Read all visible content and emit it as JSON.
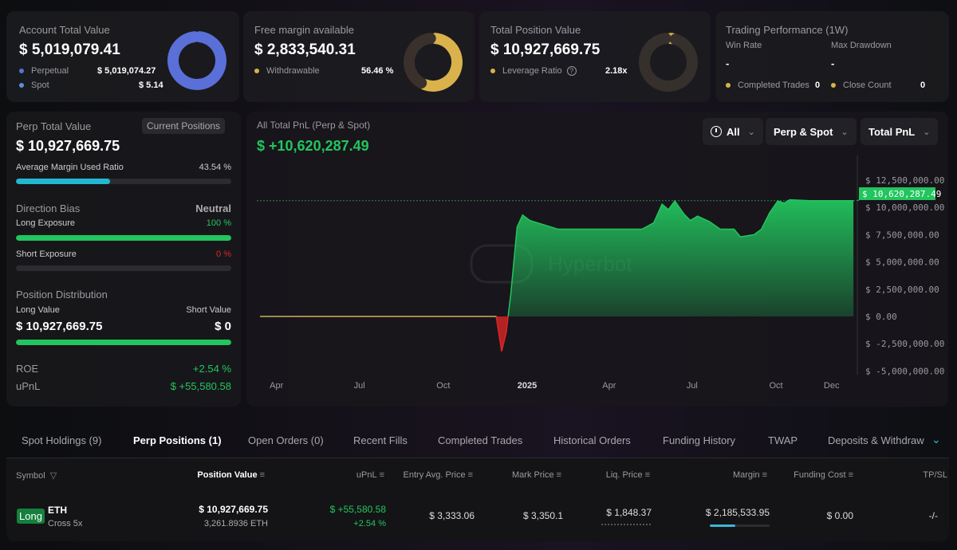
{
  "summary": {
    "account": {
      "title": "Account Total Value",
      "value": "$ 5,019,079.41",
      "items": [
        {
          "label": "Perpetual",
          "value": "$ 5,019,074.27",
          "color": "#5a6fd8"
        },
        {
          "label": "Spot",
          "value": "$ 5.14",
          "color": "#5b8fd8"
        }
      ],
      "donut_fraction": 0.999
    },
    "free_margin": {
      "title": "Free margin available",
      "value": "$ 2,833,540.31",
      "item": {
        "label": "Withdrawable",
        "value": "56.46 %",
        "color": "#d9b24c"
      },
      "donut_fraction": 0.5646
    },
    "position": {
      "title": "Total Position Value",
      "value": "$ 10,927,669.75",
      "item": {
        "label": "Leverage Ratio",
        "value": "2.18x",
        "color": "#d9b24c"
      },
      "help_icon": "question-circle-icon",
      "donut_fraction": 0.03
    },
    "performance": {
      "title": "Trading Performance (1W)",
      "win_rate_label": "Win Rate",
      "win_rate": "-",
      "max_drawdown_label": "Max Drawdown",
      "max_drawdown": "-",
      "completed_label": "Completed Trades",
      "completed": "0",
      "close_label": "Close Count",
      "close": "0"
    }
  },
  "perp": {
    "title": "Perp Total Value",
    "button": "Current Positions",
    "value": "$ 10,927,669.75",
    "margin_label": "Average Margin Used Ratio",
    "margin_value": "43.54 %",
    "margin_fraction": 0.4354,
    "bias_label": "Direction Bias",
    "bias_value": "Neutral",
    "long_label": "Long Exposure",
    "long_value": "100 %",
    "long_fraction": 1,
    "short_label": "Short Exposure",
    "short_value": "0 %",
    "short_fraction": 0,
    "dist_label": "Position Distribution",
    "long_value_label": "Long Value",
    "long_amount": "$ 10,927,669.75",
    "short_value_label": "Short Value",
    "short_amount": "$ 0",
    "roe_label": "ROE",
    "roe": "+2.54 %",
    "upnl_label": "uPnL",
    "upnl": "$ +55,580.58"
  },
  "pnl": {
    "title": "All Total PnL (Perp & Spot)",
    "value": "$ +10,620,287.49",
    "filters": [
      {
        "label": "All",
        "icon": "clock-icon"
      },
      {
        "label": "Perp & Spot"
      },
      {
        "label": "Total PnL"
      }
    ],
    "watermark": "Hyperbot"
  },
  "chart_data": {
    "type": "area",
    "current_label": "$ 10,620,287.49",
    "ylim": [
      -5000000,
      12500000
    ],
    "y_ticks": [
      12500000,
      10000000,
      7500000,
      5000000,
      2500000,
      0,
      -2500000,
      -5000000
    ],
    "y_tick_labels": [
      "$ 12,500,000.00",
      "$ 10,000,000.00",
      "$ 7,500,000.00",
      "$ 5,000,000.00",
      "$ 2,500,000.00",
      "$ 0.00",
      "$ -2,500,000.00",
      "$ -5,000,000.00"
    ],
    "x_ticks": [
      {
        "date": "2024-04-01",
        "label": "Apr"
      },
      {
        "date": "2024-07-01",
        "label": "Jul"
      },
      {
        "date": "2024-10-01",
        "label": "Oct"
      },
      {
        "date": "2025-01-01",
        "label": "2025"
      },
      {
        "date": "2025-04-01",
        "label": "Apr"
      },
      {
        "date": "2025-07-01",
        "label": "Jul"
      },
      {
        "date": "2025-10-01",
        "label": "Oct"
      },
      {
        "date": "2025-12-01",
        "label": "Dec"
      }
    ],
    "xlim": [
      "2024-03-14",
      "2025-12-25"
    ],
    "colors": {
      "positive": "#22c55e",
      "negative": "#dc2626",
      "neutral": "#b8a25a"
    },
    "points": [
      [
        "2024-03-14",
        0
      ],
      [
        "2024-11-28",
        0
      ],
      [
        "2024-12-04",
        -3200000
      ],
      [
        "2024-12-09",
        -1500000
      ],
      [
        "2024-12-14",
        2000000
      ],
      [
        "2024-12-21",
        8200000
      ],
      [
        "2024-12-27",
        9300000
      ],
      [
        "2025-01-04",
        8800000
      ],
      [
        "2025-02-04",
        8000000
      ],
      [
        "2025-05-07",
        8000000
      ],
      [
        "2025-05-20",
        8600000
      ],
      [
        "2025-05-29",
        10300000
      ],
      [
        "2025-06-05",
        9800000
      ],
      [
        "2025-06-12",
        10600000
      ],
      [
        "2025-06-22",
        9400000
      ],
      [
        "2025-06-29",
        8800000
      ],
      [
        "2025-07-07",
        9200000
      ],
      [
        "2025-07-20",
        8700000
      ],
      [
        "2025-08-01",
        8000000
      ],
      [
        "2025-08-16",
        8000000
      ],
      [
        "2025-08-23",
        7300000
      ],
      [
        "2025-09-07",
        7500000
      ],
      [
        "2025-09-15",
        8000000
      ],
      [
        "2025-09-24",
        9500000
      ],
      [
        "2025-10-03",
        10600000
      ],
      [
        "2025-10-10",
        10400000
      ],
      [
        "2025-10-16",
        10700000
      ],
      [
        "2025-11-07",
        10620287
      ],
      [
        "2025-12-25",
        10620287
      ]
    ]
  },
  "tabs": [
    {
      "label": "Spot Holdings (9)"
    },
    {
      "label": "Perp Positions (1)",
      "active": true
    },
    {
      "label": "Open Orders (0)"
    },
    {
      "label": "Recent Fills"
    },
    {
      "label": "Completed Trades"
    },
    {
      "label": "Historical Orders"
    },
    {
      "label": "Funding History"
    },
    {
      "label": "TWAP"
    },
    {
      "label": "Deposits & Withdraw"
    }
  ],
  "table": {
    "headers": [
      "Symbol",
      "Position Value",
      "uPnL",
      "Entry Avg. Price",
      "Mark Price",
      "Liq. Price",
      "Margin",
      "Funding Cost",
      "TP/SL"
    ],
    "rows": [
      {
        "side": "Long",
        "symbol": "ETH",
        "mode": "Cross 5x",
        "position_value": "$ 10,927,669.75",
        "size": "3,261.8936 ETH",
        "upnl": "$ +55,580.58",
        "upnl_pct": "+2.54 %",
        "entry": "$ 3,333.06",
        "mark": "$ 3,350.1",
        "liq": "$ 1,848.37",
        "margin": "$ 2,185,533.95",
        "margin_fraction": 0.43,
        "funding": "$ 0.00",
        "tpsl": "-/-"
      }
    ]
  }
}
